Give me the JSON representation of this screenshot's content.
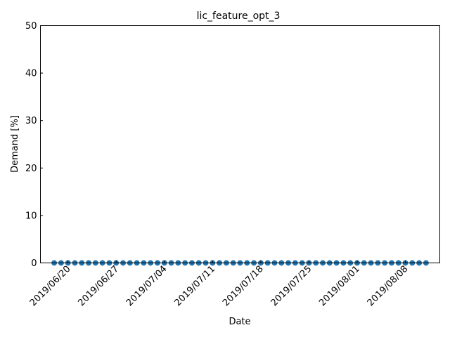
{
  "chart_data": {
    "type": "scatter",
    "title": "lic_feature_opt_3",
    "xlabel": "Date",
    "ylabel": "Demand [%]",
    "ylim": [
      0,
      50
    ],
    "xlim": [
      "2019-06-16",
      "2019-08-13"
    ],
    "yticks": [
      0,
      10,
      20,
      30,
      40,
      50
    ],
    "xticks": [
      "2019/06/20",
      "2019/06/27",
      "2019/07/04",
      "2019/07/11",
      "2019/07/18",
      "2019/07/25",
      "2019/08/01",
      "2019/08/08"
    ],
    "grid": false,
    "marker_color": "#1f77b4",
    "series": [
      {
        "x": [
          "2019-06-18",
          "2019-06-19",
          "2019-06-20",
          "2019-06-21",
          "2019-06-22",
          "2019-06-23",
          "2019-06-24",
          "2019-06-25",
          "2019-06-26",
          "2019-06-27",
          "2019-06-28",
          "2019-06-29",
          "2019-06-30",
          "2019-07-01",
          "2019-07-02",
          "2019-07-03",
          "2019-07-04",
          "2019-07-05",
          "2019-07-06",
          "2019-07-07",
          "2019-07-08",
          "2019-07-09",
          "2019-07-10",
          "2019-07-11",
          "2019-07-12",
          "2019-07-13",
          "2019-07-14",
          "2019-07-15",
          "2019-07-16",
          "2019-07-17",
          "2019-07-18",
          "2019-07-19",
          "2019-07-20",
          "2019-07-21",
          "2019-07-22",
          "2019-07-23",
          "2019-07-24",
          "2019-07-25",
          "2019-07-26",
          "2019-07-27",
          "2019-07-28",
          "2019-07-29",
          "2019-07-30",
          "2019-07-31",
          "2019-08-01",
          "2019-08-02",
          "2019-08-03",
          "2019-08-04",
          "2019-08-05",
          "2019-08-06",
          "2019-08-07",
          "2019-08-08",
          "2019-08-09",
          "2019-08-10",
          "2019-08-11"
        ],
        "y": [
          0,
          0,
          0,
          0,
          0,
          0,
          0,
          0,
          0,
          0,
          0,
          0,
          0,
          0,
          0,
          0,
          0,
          0,
          0,
          0,
          0,
          0,
          0,
          0,
          0,
          0,
          0,
          0,
          0,
          0,
          0,
          0,
          0,
          0,
          0,
          0,
          0,
          0,
          0,
          0,
          0,
          0,
          0,
          0,
          0,
          0,
          0,
          0,
          0,
          0,
          0,
          0,
          0,
          0,
          0
        ]
      }
    ]
  }
}
